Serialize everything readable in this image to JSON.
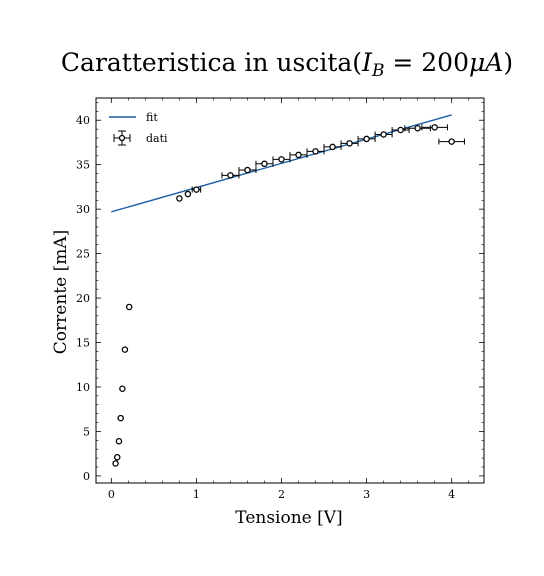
{
  "chart_data": {
    "type": "scatter",
    "title": "Caratteristica in uscita(I_B = 200μA)",
    "title_parts": {
      "prefix": "Caratteristica in uscita(",
      "var": "I",
      "sub": "B",
      "mid": " = 200",
      "mu": "μ",
      "unit": "A",
      "suffix": ")"
    },
    "xlabel": "Tensione [V]",
    "ylabel": "Corrente [mA]",
    "xlim": [
      -0.18,
      4.38
    ],
    "ylim": [
      -0.8,
      42.5
    ],
    "xticks": [
      0,
      1,
      2,
      3,
      4
    ],
    "yticks": [
      0,
      5,
      10,
      15,
      20,
      25,
      30,
      35,
      40
    ],
    "grid": false,
    "legend_position": "upper-left",
    "legend": [
      "fit",
      "dati"
    ],
    "colors": {
      "fit": "#1f5fa6",
      "points": "#000000"
    },
    "series": [
      {
        "name": "fit",
        "kind": "line",
        "x": [
          0.0,
          4.0
        ],
        "y": [
          29.7,
          40.6
        ]
      },
      {
        "name": "dati",
        "kind": "errorbar",
        "points": [
          {
            "x": 0.05,
            "y": 1.4,
            "xerr": 0.0
          },
          {
            "x": 0.07,
            "y": 2.1,
            "xerr": 0.0
          },
          {
            "x": 0.09,
            "y": 3.9,
            "xerr": 0.0
          },
          {
            "x": 0.11,
            "y": 6.5,
            "xerr": 0.0
          },
          {
            "x": 0.13,
            "y": 9.8,
            "xerr": 0.0
          },
          {
            "x": 0.16,
            "y": 14.2,
            "xerr": 0.0
          },
          {
            "x": 0.21,
            "y": 19.0,
            "xerr": 0.0
          },
          {
            "x": 0.8,
            "y": 31.2,
            "xerr": 0.0
          },
          {
            "x": 0.9,
            "y": 31.7,
            "xerr": 0.0
          },
          {
            "x": 1.0,
            "y": 32.2,
            "xerr": 0.05
          },
          {
            "x": 1.4,
            "y": 33.8,
            "xerr": 0.1
          },
          {
            "x": 1.6,
            "y": 34.4,
            "xerr": 0.1
          },
          {
            "x": 1.8,
            "y": 35.1,
            "xerr": 0.1
          },
          {
            "x": 2.0,
            "y": 35.6,
            "xerr": 0.1
          },
          {
            "x": 2.2,
            "y": 36.1,
            "xerr": 0.1
          },
          {
            "x": 2.4,
            "y": 36.5,
            "xerr": 0.1
          },
          {
            "x": 2.6,
            "y": 37.0,
            "xerr": 0.1
          },
          {
            "x": 2.8,
            "y": 37.4,
            "xerr": 0.1
          },
          {
            "x": 3.0,
            "y": 37.9,
            "xerr": 0.1
          },
          {
            "x": 3.2,
            "y": 38.4,
            "xerr": 0.1
          },
          {
            "x": 3.4,
            "y": 38.9,
            "xerr": 0.1
          },
          {
            "x": 3.6,
            "y": 39.1,
            "xerr": 0.15
          },
          {
            "x": 3.8,
            "y": 39.2,
            "xerr": 0.15
          },
          {
            "x": 4.0,
            "y": 37.6,
            "xerr": 0.15
          }
        ]
      }
    ]
  }
}
